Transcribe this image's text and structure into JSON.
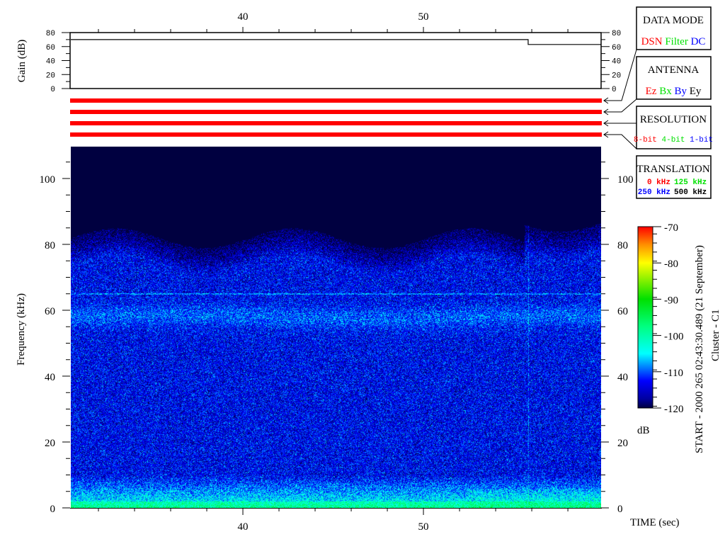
{
  "chart_data": [
    {
      "type": "line",
      "ylabel": "Gain (dB)",
      "ylim": [
        0,
        80
      ],
      "yticks": [
        "0",
        "20",
        "40",
        "60",
        "80"
      ],
      "xlim": [
        30.47,
        59.84
      ],
      "xticks": [
        "40",
        "50"
      ],
      "series": [
        {
          "x": [
            30.47,
            55.8,
            55.8,
            59.84
          ],
          "y": [
            70,
            70,
            63,
            63
          ]
        }
      ]
    },
    {
      "type": "heatmap",
      "xlabel": "TIME (sec)",
      "ylabel": "Frequency (kHz)",
      "xlim": [
        30.47,
        59.84
      ],
      "ylim": [
        0,
        109.7
      ],
      "xticks": [
        "40",
        "50"
      ],
      "yticks": [
        "0",
        "20",
        "40",
        "60",
        "80",
        "100"
      ],
      "colorbar": {
        "label": "dB",
        "range": [
          -120,
          -70
        ],
        "ticks": [
          "-70",
          "-80",
          "-90",
          "-100",
          "-110",
          "-120"
        ],
        "colormap": "rainbow"
      },
      "features": {
        "noise_cutoff_khz": 80,
        "band_center_khz": 58,
        "line_khz": 65,
        "strong_low_freq_khz": 5,
        "vertical_line_sec": 55.8
      }
    }
  ],
  "status_bars": {
    "count": 4,
    "color": "#ff0000"
  },
  "panels": {
    "data_mode": {
      "title": "DATA MODE",
      "items": [
        {
          "t": "DSN",
          "c": "#ff0000"
        },
        {
          "t": "Filter",
          "c": "#00e000"
        },
        {
          "t": "DC",
          "c": "#0000ff"
        }
      ]
    },
    "antenna": {
      "title": "ANTENNA",
      "items": [
        {
          "t": "Ez",
          "c": "#ff0000"
        },
        {
          "t": "Bx",
          "c": "#00e000"
        },
        {
          "t": "By",
          "c": "#0000ff"
        },
        {
          "t": "Ey",
          "c": "#000000"
        }
      ]
    },
    "resolution": {
      "title": "RESOLUTION",
      "items": [
        {
          "t": "8-bit",
          "c": "#ff0000"
        },
        {
          "t": "4-bit",
          "c": "#00e000"
        },
        {
          "t": "1-bit",
          "c": "#0000ff"
        }
      ]
    },
    "translation": {
      "title": "TRANSLATION",
      "items": [
        {
          "t": "0 kHz",
          "c": "#ff0000"
        },
        {
          "t": "125 kHz",
          "c": "#00e000"
        },
        {
          "t": "250 kHz",
          "c": "#0000ff"
        },
        {
          "t": "500 kHz",
          "c": "#000000"
        }
      ]
    }
  },
  "side_text": {
    "start": "START - 2000 265 02:43:30.489 (21 September)",
    "spacecraft": "Cluster - C1"
  }
}
